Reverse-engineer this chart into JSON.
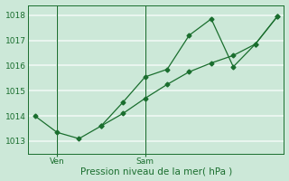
{
  "title": "",
  "xlabel": "Pression niveau de la mer( hPa )",
  "ylabel": "",
  "bg_color": "#cce8d8",
  "plot_bg_color": "#cce8d8",
  "grid_color": "#f0f8f4",
  "line_color": "#1a6e2e",
  "ylim": [
    1012.5,
    1018.4
  ],
  "yticks": [
    1013,
    1014,
    1015,
    1016,
    1017,
    1018
  ],
  "line1_x": [
    0,
    1,
    2,
    3,
    4,
    5,
    6,
    7,
    8,
    9,
    10,
    11
  ],
  "line1_y": [
    1014.0,
    1013.35,
    1013.1,
    1013.6,
    1014.55,
    1015.55,
    1015.85,
    1017.2,
    1017.85,
    1015.95,
    1016.85,
    1017.95
  ],
  "line2_x": [
    3,
    4,
    5,
    6,
    7,
    8,
    9,
    10,
    11
  ],
  "line2_y": [
    1013.6,
    1014.1,
    1014.7,
    1015.25,
    1015.75,
    1016.1,
    1016.4,
    1016.85,
    1017.95
  ],
  "xtick_positions": [
    1,
    5
  ],
  "xtick_labels": [
    "Ven",
    "Sam"
  ],
  "vline_positions": [
    1,
    5
  ],
  "xlim": [
    -0.3,
    11.3
  ]
}
